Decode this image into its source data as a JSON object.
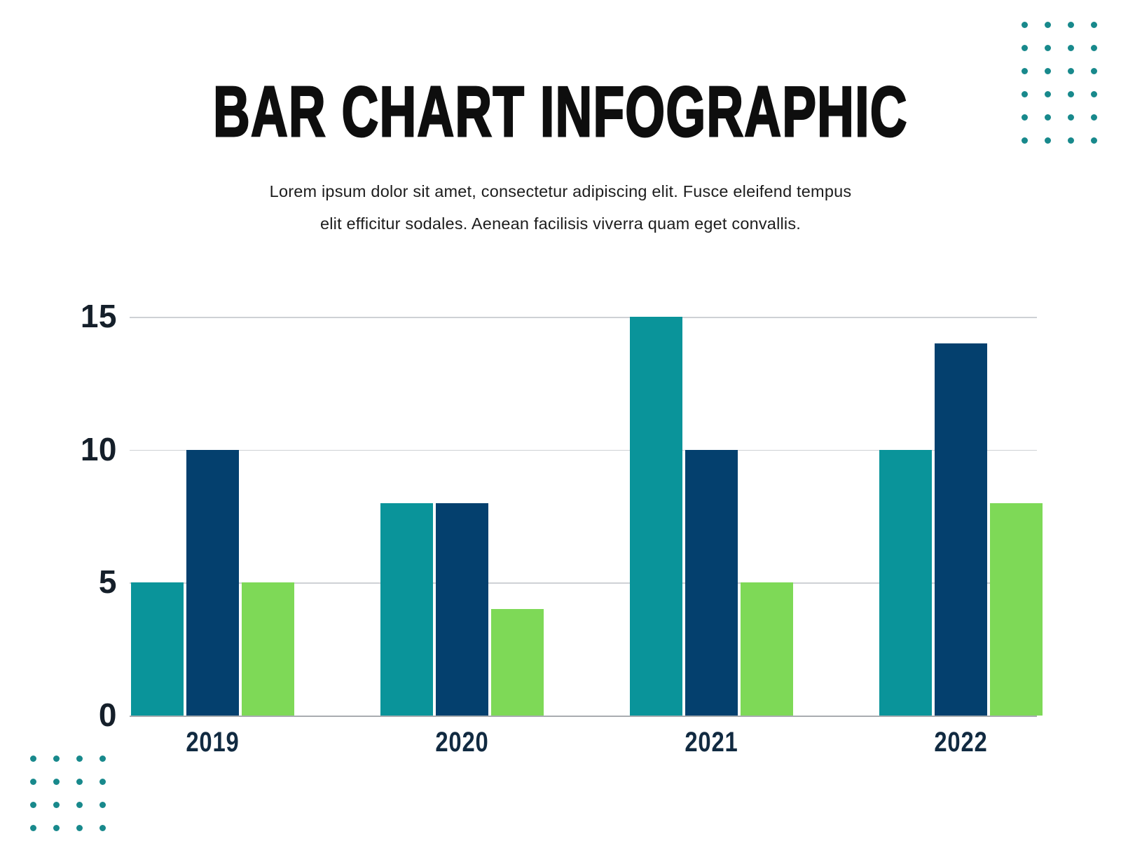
{
  "page": {
    "title": "BAR CHART INFOGRAPHIC",
    "subtitle_line1": "Lorem ipsum dolor sit amet, consectetur adipiscing elit. Fusce eleifend tempus",
    "subtitle_line2": "elit efficitur sodales. Aenean facilisis viverra quam eget convallis."
  },
  "colors": {
    "series_teal": "#0a949a",
    "series_navy": "#04406e",
    "series_green": "#7ed957",
    "decor_dot_teal": "#18898c",
    "gridline": "#ced1d5",
    "axis_baseline": "#a9acb0",
    "ytick_text": "#151f2a",
    "xtick_text": "#112a41",
    "title_text": "#0e0e0e",
    "subtitle_text": "#1d1d1d"
  },
  "chart_data": {
    "type": "bar",
    "title": "BAR CHART INFOGRAPHIC",
    "categories": [
      "2019",
      "2020",
      "2021",
      "2022"
    ],
    "series": [
      {
        "name": "series-1-teal",
        "color": "#0a949a",
        "values": [
          5,
          8,
          15,
          10
        ]
      },
      {
        "name": "series-2-navy",
        "color": "#04406e",
        "values": [
          10,
          8,
          10,
          14
        ]
      },
      {
        "name": "series-3-green",
        "color": "#7ed957",
        "values": [
          5,
          4,
          5,
          8
        ]
      }
    ],
    "xlabel": "",
    "ylabel": "",
    "ylim": [
      0,
      15
    ],
    "yticks": [
      0,
      5,
      10,
      15
    ],
    "grid": true,
    "legend": "none"
  },
  "decor": {
    "top_right_dots": {
      "rows": 6,
      "cols": 4
    },
    "bottom_left_dots": {
      "rows": 4,
      "cols": 4
    }
  }
}
